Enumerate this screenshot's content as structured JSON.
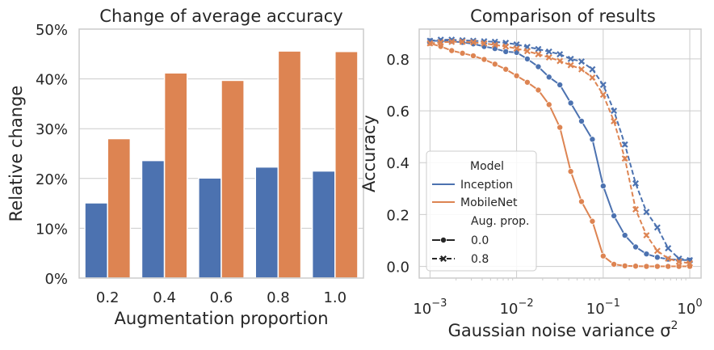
{
  "colors": {
    "blue": "#4c72b0",
    "orange": "#dd8452",
    "grid": "#cccccc",
    "text": "#262626"
  },
  "chart_data": [
    {
      "type": "bar",
      "title": "Change of average accuracy",
      "xlabel": "Augmentation proportion",
      "ylabel": "Relative change",
      "categories": [
        "0.2",
        "0.4",
        "0.6",
        "0.8",
        "1.0"
      ],
      "series": [
        {
          "color": "#4c72b0",
          "values": [
            15.1,
            23.6,
            20.1,
            22.3,
            21.5
          ]
        },
        {
          "color": "#dd8452",
          "values": [
            28.0,
            41.2,
            39.7,
            45.6,
            45.5
          ]
        }
      ],
      "ylim": [
        0,
        50
      ],
      "yticks": [
        0,
        10,
        20,
        30,
        40,
        50
      ],
      "ytick_labels": [
        "0%",
        "10%",
        "20%",
        "30%",
        "40%",
        "50%"
      ],
      "grid": "horizontal",
      "legend": "none"
    },
    {
      "type": "line",
      "title": "Comparison of results",
      "xlabel": "Gaussian noise variance σ",
      "xlabel_superscript": "2",
      "ylabel": "Accuracy",
      "xscale": "log",
      "xlim": [
        0.00075,
        1.35
      ],
      "ylim": [
        -0.045,
        0.915
      ],
      "xticks": [
        0.001,
        0.01,
        0.1,
        1
      ],
      "xtick_bases": [
        "10",
        "10",
        "10",
        "10"
      ],
      "xtick_exponents": [
        "−3",
        "−2",
        "−1",
        "0"
      ],
      "yticks": [
        0.0,
        0.2,
        0.4,
        0.6,
        0.8
      ],
      "ytick_labels": [
        "0.0",
        "0.2",
        "0.4",
        "0.6",
        "0.8"
      ],
      "grid": "both",
      "x": [
        0.001,
        0.00133,
        0.00178,
        0.00237,
        0.00316,
        0.00422,
        0.00562,
        0.0075,
        0.01,
        0.0133,
        0.0178,
        0.0237,
        0.0316,
        0.0422,
        0.0562,
        0.075,
        0.1,
        0.133,
        0.178,
        0.237,
        0.316,
        0.422,
        0.562,
        0.75,
        1.0
      ],
      "series": [
        {
          "model": "Inception",
          "aug": "0.0",
          "color": "#4c72b0",
          "dash": "solid",
          "marker": "circle",
          "values": [
            0.87,
            0.87,
            0.868,
            0.864,
            0.858,
            0.848,
            0.84,
            0.828,
            0.825,
            0.8,
            0.77,
            0.73,
            0.7,
            0.63,
            0.56,
            0.49,
            0.31,
            0.195,
            0.12,
            0.075,
            0.048,
            0.035,
            0.028,
            0.025,
            0.024
          ]
        },
        {
          "model": "MobileNet",
          "aug": "0.0",
          "color": "#dd8452",
          "dash": "solid",
          "marker": "circle",
          "values": [
            0.86,
            0.848,
            0.832,
            0.822,
            0.812,
            0.798,
            0.78,
            0.76,
            0.735,
            0.71,
            0.68,
            0.624,
            0.536,
            0.366,
            0.25,
            0.174,
            0.04,
            0.008,
            0.002,
            0.001,
            0.0,
            0.0,
            0.0,
            0.0,
            0.0
          ]
        },
        {
          "model": "Inception",
          "aug": "0.8",
          "color": "#4c72b0",
          "dash": "dashed",
          "marker": "x",
          "values": [
            0.87,
            0.874,
            0.874,
            0.872,
            0.87,
            0.868,
            0.866,
            0.862,
            0.856,
            0.846,
            0.838,
            0.828,
            0.818,
            0.8,
            0.79,
            0.76,
            0.7,
            0.6,
            0.47,
            0.32,
            0.21,
            0.15,
            0.07,
            0.03,
            0.024
          ]
        },
        {
          "model": "MobileNet",
          "aug": "0.8",
          "color": "#dd8452",
          "dash": "dashed",
          "marker": "x",
          "values": [
            0.86,
            0.864,
            0.866,
            0.866,
            0.864,
            0.86,
            0.854,
            0.848,
            0.84,
            0.83,
            0.818,
            0.806,
            0.792,
            0.776,
            0.76,
            0.728,
            0.662,
            0.56,
            0.416,
            0.22,
            0.12,
            0.06,
            0.03,
            0.018,
            0.012
          ]
        }
      ],
      "legend": {
        "placement": "lower-left",
        "hue_title": "Model",
        "hue_entries": [
          {
            "label": "Inception",
            "color": "#4c72b0"
          },
          {
            "label": "MobileNet",
            "color": "#dd8452"
          }
        ],
        "style_title": "Aug. prop.",
        "style_entries": [
          {
            "label": "0.0",
            "dash": "solid",
            "marker": "circle"
          },
          {
            "label": "0.8",
            "dash": "dashed",
            "marker": "x"
          }
        ]
      }
    }
  ]
}
